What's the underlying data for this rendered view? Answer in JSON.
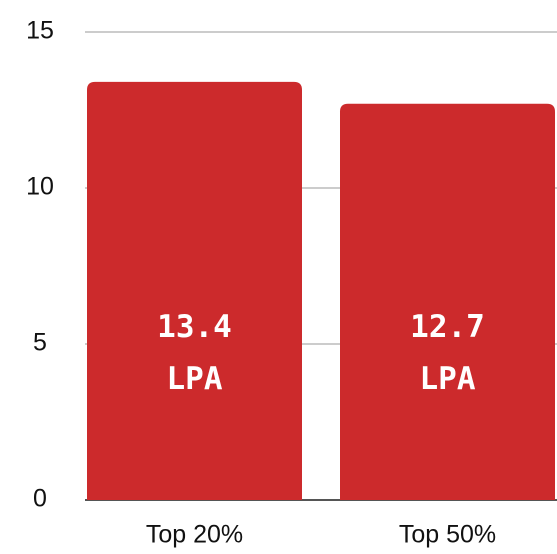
{
  "chart_data": {
    "type": "bar",
    "categories": [
      "Top 20%",
      "Top 50%"
    ],
    "values": [
      13.4,
      12.7
    ],
    "value_labels": [
      "13.4 LPA",
      "12.7 LPA"
    ],
    "color": "#cc2a2c",
    "ylim": [
      0,
      15
    ],
    "yticks": [
      0,
      5,
      10,
      15
    ],
    "grid": true
  }
}
